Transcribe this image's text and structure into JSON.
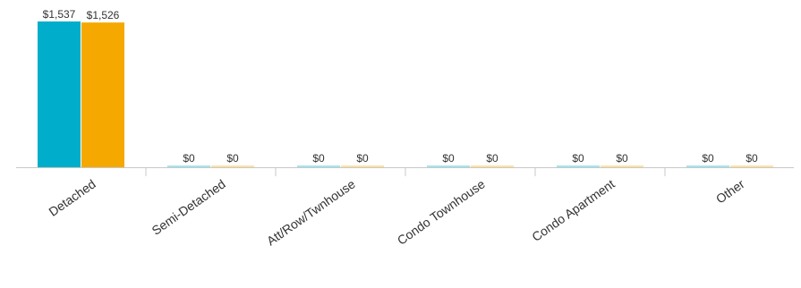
{
  "chart_data": {
    "type": "bar",
    "categories": [
      "Detached",
      "Semi-Detached",
      "Att/Row/Twnhouse",
      "Condo Townhouse",
      "Condo Apartment",
      "Other"
    ],
    "series": [
      {
        "values": [
          1537,
          0,
          0,
          0,
          0,
          0
        ],
        "value_labels": [
          "$1,537",
          "$0",
          "$0",
          "$0",
          "$0",
          "$0"
        ],
        "color": "#00AECB"
      },
      {
        "values": [
          1526,
          0,
          0,
          0,
          0,
          0
        ],
        "value_labels": [
          "$1,526",
          "$0",
          "$0",
          "$0",
          "$0",
          "$0"
        ],
        "color": "#F5A800"
      }
    ],
    "ylim": [
      0,
      1537
    ],
    "grid": false,
    "axis_color": "#c8c8c8"
  }
}
